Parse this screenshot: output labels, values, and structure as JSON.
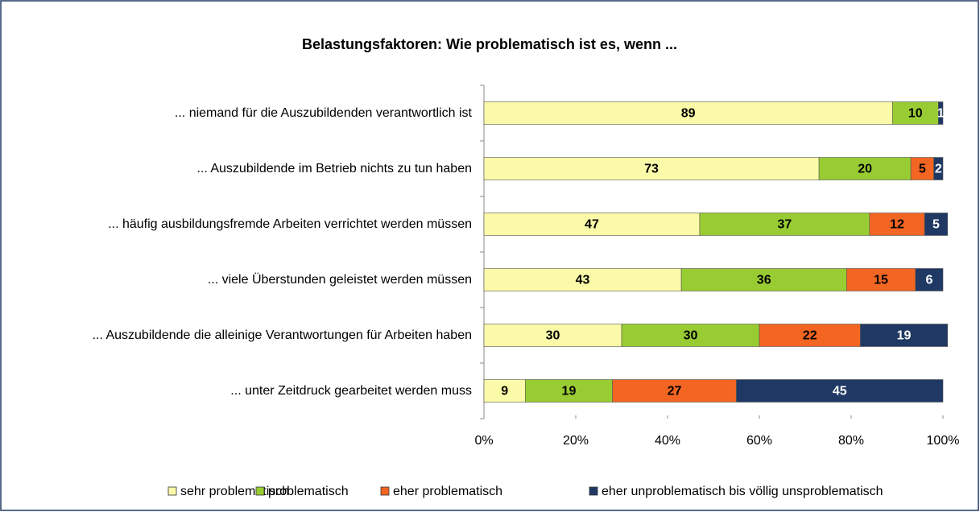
{
  "chart_data": {
    "type": "bar",
    "orientation": "horizontal",
    "stacked": true,
    "title": "Belastungsfaktoren: Wie problematisch ist es, wenn ...",
    "categories": [
      "... niemand für die Auszubildenden verantwortlich ist",
      "... Auszubildende im Betrieb nichts zu tun haben",
      "... häufig ausbildungsfremde Arbeiten verrichtet werden müssen",
      "... viele Überstunden geleistet werden müssen",
      "... Auszubildende die alleinige Verantwortungen für Arbeiten haben",
      "... unter Zeitdruck gearbeitet werden muss"
    ],
    "series": [
      {
        "name": "sehr problematisch",
        "color": "#fafaa8",
        "label_color": "#000000",
        "values": [
          89,
          73,
          47,
          43,
          30,
          9
        ]
      },
      {
        "name": "problematisch",
        "color": "#99cc33",
        "label_color": "#000000",
        "values": [
          10,
          20,
          37,
          36,
          30,
          19
        ]
      },
      {
        "name": "eher problematisch",
        "color": "#f26522",
        "label_color": "#000000",
        "values": [
          null,
          5,
          12,
          15,
          22,
          27
        ]
      },
      {
        "name": "eher unproblematisch bis völlig unsproblematisch",
        "color": "#1f3864",
        "label_color": "#ffffff",
        "values": [
          1,
          2,
          5,
          6,
          19,
          45
        ]
      }
    ],
    "xlim": [
      0,
      100
    ],
    "xticks": [
      {
        "value": 0,
        "label": "0%"
      },
      {
        "value": 20,
        "label": "20%"
      },
      {
        "value": 40,
        "label": "40%"
      },
      {
        "value": 60,
        "label": "60%"
      },
      {
        "value": 80,
        "label": "80%"
      },
      {
        "value": 100,
        "label": "100%"
      }
    ],
    "legend": "bottom"
  }
}
